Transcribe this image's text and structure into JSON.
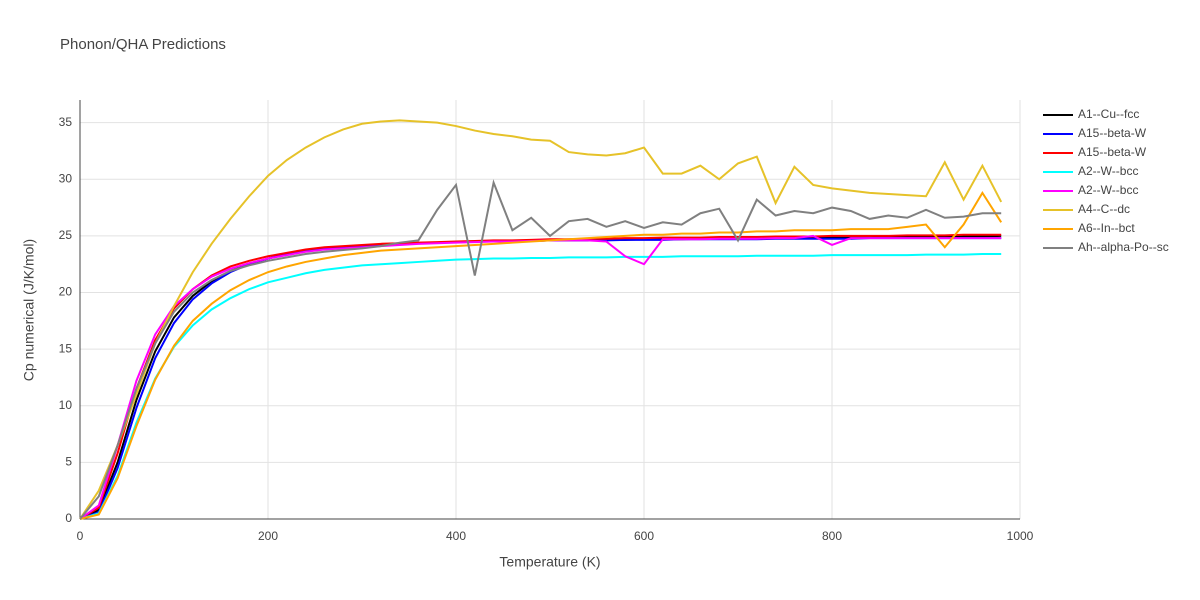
{
  "chart_data": {
    "type": "line",
    "title": "Phonon/QHA Predictions",
    "x_label": "Temperature (K)",
    "y_label": "Cp numerical (J/K/mol)",
    "xlim": [
      0,
      1000
    ],
    "ylim": [
      0,
      37
    ],
    "xticks": [
      0,
      200,
      400,
      600,
      800,
      1000
    ],
    "yticks": [
      0,
      5,
      10,
      15,
      20,
      25,
      30,
      35
    ],
    "grid": true,
    "legend": "right",
    "x": [
      0,
      20,
      40,
      60,
      80,
      100,
      120,
      140,
      160,
      180,
      200,
      220,
      240,
      260,
      280,
      300,
      320,
      340,
      360,
      380,
      400,
      420,
      440,
      460,
      480,
      500,
      520,
      540,
      560,
      580,
      600,
      620,
      640,
      660,
      680,
      700,
      720,
      740,
      760,
      780,
      800,
      820,
      840,
      860,
      880,
      900,
      920,
      940,
      960,
      980
    ],
    "series": [
      {
        "name": "A1--Cu--fcc",
        "color": "#000000",
        "values": [
          0,
          0.8,
          5.0,
          10.5,
          14.8,
          17.8,
          19.7,
          21.0,
          21.9,
          22.5,
          23.0,
          23.4,
          23.7,
          23.9,
          24.0,
          24.1,
          24.2,
          24.3,
          24.35,
          24.4,
          24.45,
          24.5,
          24.5,
          24.55,
          24.55,
          24.6,
          24.6,
          24.6,
          24.65,
          24.65,
          24.7,
          24.7,
          24.7,
          24.75,
          24.75,
          24.75,
          24.8,
          24.8,
          24.8,
          24.8,
          24.85,
          24.85,
          24.85,
          24.9,
          24.9,
          24.9,
          24.9,
          24.95,
          24.95,
          25.0
        ]
      },
      {
        "name": "A15--beta-W",
        "color": "#0000ff",
        "values": [
          0,
          0.6,
          4.5,
          9.8,
          14.2,
          17.3,
          19.4,
          20.8,
          21.8,
          22.5,
          23.0,
          23.4,
          23.7,
          23.9,
          24.0,
          24.1,
          24.2,
          24.3,
          24.35,
          24.4,
          24.45,
          24.5,
          24.5,
          24.55,
          24.55,
          24.6,
          24.6,
          24.6,
          24.6,
          24.65,
          24.65,
          24.65,
          24.7,
          24.7,
          24.7,
          24.7,
          24.7,
          24.75,
          24.75,
          24.75,
          24.75,
          24.75,
          24.8,
          24.8,
          24.8,
          24.8,
          24.8,
          24.8,
          24.8,
          24.8
        ]
      },
      {
        "name": "A15--beta-W",
        "color": "#ff0000",
        "values": [
          0,
          1.0,
          5.8,
          11.5,
          15.8,
          18.6,
          20.3,
          21.5,
          22.3,
          22.8,
          23.2,
          23.5,
          23.8,
          24.0,
          24.1,
          24.2,
          24.3,
          24.35,
          24.4,
          24.45,
          24.5,
          24.55,
          24.6,
          24.6,
          24.65,
          24.7,
          24.7,
          24.75,
          24.75,
          24.8,
          24.8,
          24.85,
          24.85,
          24.85,
          24.9,
          24.9,
          24.9,
          24.95,
          24.95,
          24.95,
          25.0,
          25.0,
          25.0,
          25.0,
          25.05,
          25.05,
          25.05,
          25.1,
          25.1,
          25.1
        ]
      },
      {
        "name": "A2--W--bcc",
        "color": "#00ffff",
        "values": [
          0,
          0.5,
          3.8,
          8.5,
          12.4,
          15.2,
          17.1,
          18.5,
          19.5,
          20.3,
          20.9,
          21.3,
          21.7,
          22.0,
          22.2,
          22.4,
          22.5,
          22.6,
          22.7,
          22.8,
          22.9,
          22.95,
          23.0,
          23.0,
          23.05,
          23.05,
          23.1,
          23.1,
          23.1,
          23.15,
          23.15,
          23.15,
          23.2,
          23.2,
          23.2,
          23.2,
          23.25,
          23.25,
          23.25,
          23.25,
          23.3,
          23.3,
          23.3,
          23.3,
          23.3,
          23.35,
          23.35,
          23.35,
          23.4,
          23.4
        ]
      },
      {
        "name": "A2--W--bcc",
        "color": "#ff00ff",
        "values": [
          0,
          1.2,
          6.5,
          12.2,
          16.3,
          18.8,
          20.3,
          21.4,
          22.1,
          22.6,
          23.0,
          23.3,
          23.6,
          23.8,
          23.9,
          24.0,
          24.1,
          24.2,
          24.3,
          24.35,
          24.4,
          24.45,
          24.5,
          24.5,
          24.55,
          24.6,
          24.6,
          24.6,
          24.5,
          23.2,
          22.5,
          24.7,
          24.7,
          24.7,
          24.75,
          24.75,
          24.75,
          24.8,
          24.8,
          25.0,
          24.2,
          24.8,
          24.8,
          24.8,
          24.8,
          24.8,
          24.8,
          24.8,
          24.8,
          24.8
        ]
      },
      {
        "name": "A4--C--dc",
        "color": "#e6c229",
        "values": [
          0,
          2.5,
          6.5,
          11.0,
          15.5,
          18.8,
          21.8,
          24.3,
          26.5,
          28.5,
          30.3,
          31.7,
          32.8,
          33.7,
          34.4,
          34.9,
          35.1,
          35.2,
          35.1,
          35.0,
          34.7,
          34.3,
          34.0,
          33.8,
          33.5,
          33.4,
          32.4,
          32.2,
          32.1,
          32.3,
          32.8,
          30.5,
          30.5,
          31.2,
          30.0,
          31.4,
          32.0,
          27.9,
          31.1,
          29.5,
          29.2,
          29.0,
          28.8,
          28.7,
          28.6,
          28.5,
          31.5,
          28.2,
          31.2,
          28.0
        ]
      },
      {
        "name": "A6--In--bct",
        "color": "#ffa500",
        "values": [
          0,
          0.4,
          3.6,
          8.2,
          12.3,
          15.3,
          17.5,
          19.0,
          20.2,
          21.1,
          21.8,
          22.3,
          22.7,
          23.0,
          23.3,
          23.5,
          23.7,
          23.8,
          23.9,
          24.0,
          24.1,
          24.2,
          24.3,
          24.4,
          24.5,
          24.6,
          24.7,
          24.8,
          24.9,
          25.0,
          25.1,
          25.1,
          25.2,
          25.2,
          25.3,
          25.3,
          25.4,
          25.4,
          25.5,
          25.5,
          25.5,
          25.6,
          25.6,
          25.6,
          25.8,
          26.0,
          24.0,
          26.0,
          28.8,
          26.2
        ]
      },
      {
        "name": "Ah--alpha-Po--sc",
        "color": "#808080",
        "values": [
          0,
          2.0,
          6.5,
          11.5,
          15.5,
          18.3,
          20.0,
          21.1,
          21.9,
          22.4,
          22.8,
          23.1,
          23.4,
          23.6,
          23.75,
          23.9,
          24.1,
          24.4,
          24.6,
          27.3,
          29.5,
          21.5,
          29.7,
          25.5,
          26.6,
          25.0,
          26.3,
          26.5,
          25.8,
          26.3,
          25.7,
          26.2,
          26.0,
          27.0,
          27.4,
          24.6,
          28.2,
          26.8,
          27.2,
          27.0,
          27.5,
          27.2,
          26.5,
          26.8,
          26.6,
          27.3,
          26.6,
          26.7,
          27.0,
          27.0
        ]
      }
    ]
  }
}
